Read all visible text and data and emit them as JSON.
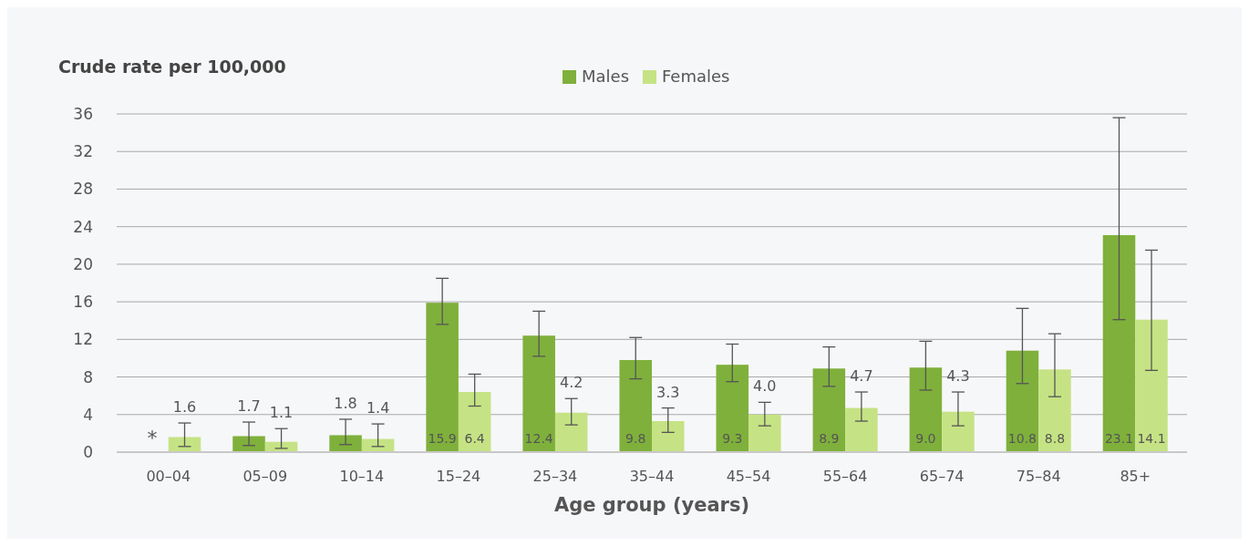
{
  "chart_data": {
    "type": "bar",
    "ylabel": "Crude rate per 100,000",
    "xlabel": "Age group (years)",
    "categories": [
      "00–04",
      "05–09",
      "10–14",
      "15–24",
      "25–34",
      "35–44",
      "45–54",
      "55–64",
      "65–74",
      "75–84",
      "85+"
    ],
    "series": [
      {
        "name": "Males",
        "color": "#7fb03b",
        "values": [
          null,
          1.7,
          1.8,
          15.9,
          12.4,
          9.8,
          9.3,
          8.9,
          9.0,
          10.8,
          23.1
        ],
        "errors": [
          null,
          [
            0.7,
            3.2
          ],
          [
            0.8,
            3.5
          ],
          [
            13.6,
            18.5
          ],
          [
            10.2,
            15.0
          ],
          [
            7.8,
            12.2
          ],
          [
            7.5,
            11.5
          ],
          [
            7.0,
            11.2
          ],
          [
            6.6,
            11.8
          ],
          [
            7.3,
            15.3
          ],
          [
            14.1,
            35.6
          ]
        ],
        "value_labels": [
          "*",
          "1.7",
          "1.8",
          "15.9",
          "12.4",
          "9.8",
          "9.3",
          "8.9",
          "9.0",
          "10.8",
          "23.1"
        ]
      },
      {
        "name": "Females",
        "color": "#c5e384",
        "values": [
          1.6,
          1.1,
          1.4,
          6.4,
          4.2,
          3.3,
          4.0,
          4.7,
          4.3,
          8.8,
          14.1
        ],
        "errors": [
          [
            0.6,
            3.1
          ],
          [
            0.4,
            2.5
          ],
          [
            0.6,
            3.0
          ],
          [
            4.9,
            8.3
          ],
          [
            2.9,
            5.7
          ],
          [
            2.1,
            4.7
          ],
          [
            2.8,
            5.3
          ],
          [
            3.3,
            6.4
          ],
          [
            2.8,
            6.4
          ],
          [
            5.9,
            12.6
          ],
          [
            8.7,
            21.5
          ]
        ],
        "value_labels": [
          "1.6",
          "1.1",
          "1.4",
          "6.4",
          "4.2",
          "3.3",
          "4.0",
          "4.7",
          "4.3",
          "8.8",
          "14.1"
        ]
      }
    ],
    "ylim": [
      0,
      36
    ],
    "yticks": [
      0,
      4,
      8,
      12,
      16,
      20,
      24,
      28,
      32,
      36
    ],
    "grid": "y",
    "legend": "top"
  }
}
